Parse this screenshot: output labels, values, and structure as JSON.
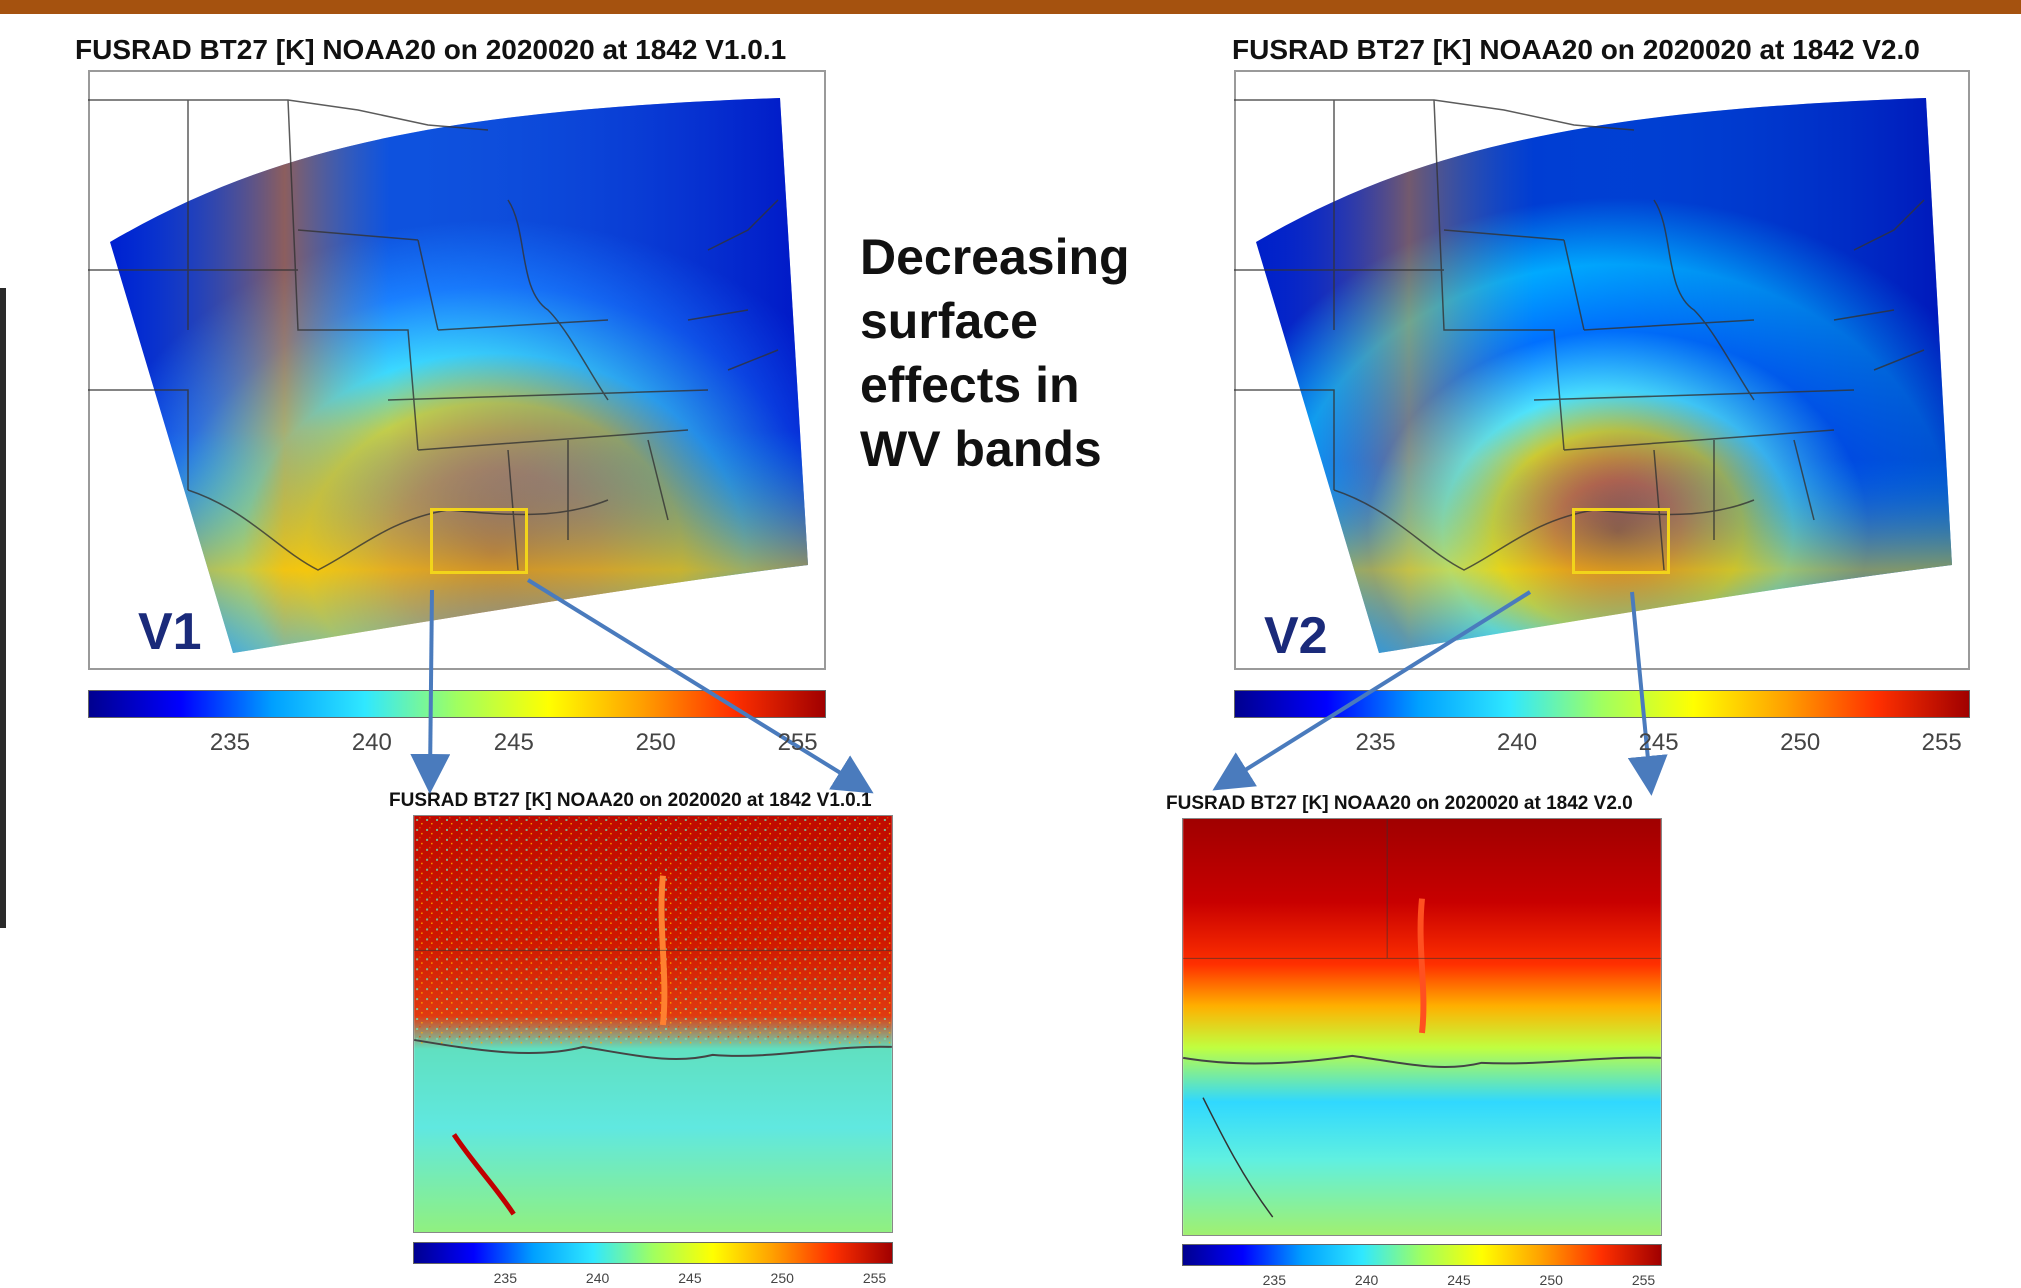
{
  "titles": {
    "main_left": "FUSRAD BT27 [K] NOAA20 on 2020020 at 1842 V1.0.1",
    "main_right": "FUSRAD BT27 [K] NOAA20 on 2020020 at 1842 V2.0",
    "inset_left": "FUSRAD BT27 [K] NOAA20 on 2020020 at 1842 V1.0.1",
    "inset_right": "FUSRAD BT27 [K] NOAA20 on 2020020 at 1842 V2.0"
  },
  "labels": {
    "left_version": "V1",
    "right_version": "V2"
  },
  "message": {
    "line1": "Decreasing",
    "line2": "surface",
    "line3": "effects in",
    "line4": "WV bands"
  },
  "colorbar": {
    "ticks": [
      "235",
      "240",
      "245",
      "250",
      "255"
    ],
    "range": [
      230,
      256
    ],
    "colormap": [
      "#00008f",
      "#0000ff",
      "#00a0ff",
      "#30e8ff",
      "#a0ff60",
      "#ffff00",
      "#ffa000",
      "#ff3000",
      "#a00000"
    ]
  },
  "colors": {
    "banner": "#a5520f",
    "zoom_box": "#f2d41a",
    "arrow": "#4a7bbd",
    "version_label": "#1a2a7a"
  }
}
